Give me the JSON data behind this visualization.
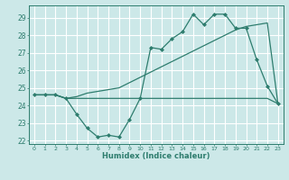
{
  "title": "",
  "xlabel": "Humidex (Indice chaleur)",
  "x_values": [
    0,
    1,
    2,
    3,
    4,
    5,
    6,
    7,
    8,
    9,
    10,
    11,
    12,
    13,
    14,
    15,
    16,
    17,
    18,
    19,
    20,
    21,
    22,
    23
  ],
  "line1_y": [
    24.6,
    24.6,
    24.6,
    24.4,
    23.5,
    22.7,
    22.2,
    22.3,
    22.2,
    23.2,
    24.4,
    27.3,
    27.2,
    27.8,
    28.2,
    29.2,
    28.6,
    29.2,
    29.2,
    28.4,
    28.4,
    26.6,
    25.1,
    24.1
  ],
  "line2_y": [
    24.6,
    24.6,
    24.6,
    24.4,
    24.4,
    24.4,
    24.4,
    24.4,
    24.4,
    24.4,
    24.4,
    24.4,
    24.4,
    24.4,
    24.4,
    24.4,
    24.4,
    24.4,
    24.4,
    24.4,
    24.4,
    24.4,
    24.4,
    24.1
  ],
  "line3_y": [
    24.6,
    24.6,
    24.6,
    24.4,
    24.5,
    24.7,
    24.8,
    24.9,
    25.0,
    25.3,
    25.6,
    25.9,
    26.2,
    26.5,
    26.8,
    27.1,
    27.4,
    27.7,
    28.0,
    28.3,
    28.5,
    28.6,
    28.7,
    24.1
  ],
  "ylim": [
    21.8,
    29.7
  ],
  "xlim": [
    -0.5,
    23.5
  ],
  "yticks": [
    22,
    23,
    24,
    25,
    26,
    27,
    28,
    29
  ],
  "xticks": [
    0,
    1,
    2,
    3,
    4,
    5,
    6,
    7,
    8,
    9,
    10,
    11,
    12,
    13,
    14,
    15,
    16,
    17,
    18,
    19,
    20,
    21,
    22,
    23
  ],
  "line_color": "#2e7d6e",
  "bg_color": "#cce8e8",
  "grid_color": "#ffffff",
  "marker": "D",
  "marker_size": 2.0,
  "linewidth": 0.9
}
